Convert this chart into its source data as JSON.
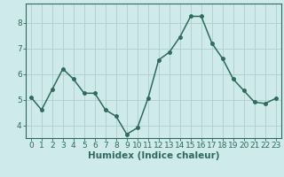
{
  "x": [
    0,
    1,
    2,
    3,
    4,
    5,
    6,
    7,
    8,
    9,
    10,
    11,
    12,
    13,
    14,
    15,
    16,
    17,
    18,
    19,
    20,
    21,
    22,
    23
  ],
  "y": [
    5.1,
    4.6,
    5.4,
    6.2,
    5.8,
    5.25,
    5.25,
    4.6,
    4.35,
    3.65,
    3.9,
    5.05,
    6.55,
    6.85,
    7.45,
    8.25,
    8.25,
    7.2,
    6.6,
    5.8,
    5.35,
    4.9,
    4.85,
    5.05
  ],
  "line_color": "#2e6b5e",
  "marker": "o",
  "markersize": 2.5,
  "linewidth": 1.1,
  "xlabel": "Humidex (Indice chaleur)",
  "xlim": [
    -0.5,
    23.5
  ],
  "ylim": [
    3.5,
    8.75
  ],
  "yticks": [
    4,
    5,
    6,
    7,
    8
  ],
  "xticks": [
    0,
    1,
    2,
    3,
    4,
    5,
    6,
    7,
    8,
    9,
    10,
    11,
    12,
    13,
    14,
    15,
    16,
    17,
    18,
    19,
    20,
    21,
    22,
    23
  ],
  "bg_color": "#ceeaea",
  "grid_color": "#b0cccc",
  "tick_label_fontsize": 6.5,
  "xlabel_fontsize": 7.5
}
